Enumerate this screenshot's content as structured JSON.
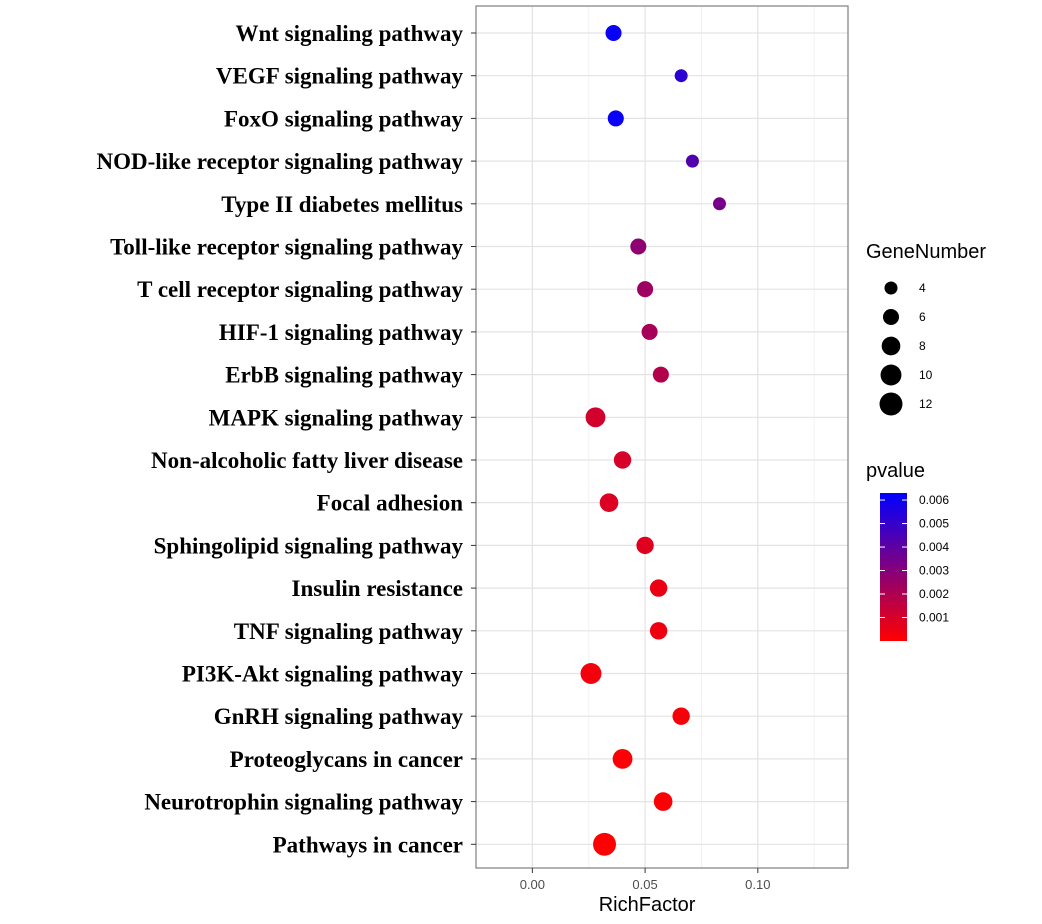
{
  "chart_data": {
    "type": "scatter",
    "title": "",
    "xlabel": "RichFactor",
    "ylabel": "",
    "xlim": [
      -0.025,
      0.14
    ],
    "xticks": [
      0.0,
      0.05,
      0.1
    ],
    "xtick_labels": [
      "0.00",
      "0.05",
      "0.10"
    ],
    "grid": true,
    "categories": [
      "Wnt signaling pathway",
      "VEGF signaling pathway",
      "FoxO signaling pathway",
      "NOD-like receptor signaling pathway",
      "Type II diabetes mellitus",
      "Toll-like receptor signaling pathway",
      "T cell receptor signaling pathway",
      "HIF-1 signaling pathway",
      "ErbB signaling pathway",
      "MAPK signaling pathway",
      "Non-alcoholic fatty liver disease",
      "Focal adhesion",
      "Sphingolipid signaling pathway",
      "Insulin resistance",
      "TNF signaling pathway",
      "PI3K-Akt signaling pathway",
      "GnRH signaling pathway",
      "Proteoglycans in cancer",
      "Neurotrophin signaling pathway",
      "Pathways in cancer"
    ],
    "rich_factor": [
      0.036,
      0.066,
      0.037,
      0.071,
      0.083,
      0.047,
      0.05,
      0.052,
      0.057,
      0.028,
      0.04,
      0.034,
      0.05,
      0.056,
      0.056,
      0.026,
      0.066,
      0.04,
      0.058,
      0.032
    ],
    "gene_number": [
      6,
      4,
      6,
      4,
      4,
      6,
      6,
      6,
      6,
      9,
      7,
      8,
      7,
      7,
      7,
      10,
      7,
      9,
      8,
      12
    ],
    "pvalue": [
      0.0061,
      0.0052,
      0.0061,
      0.0043,
      0.0034,
      0.0028,
      0.0024,
      0.0022,
      0.0019,
      0.0011,
      0.001,
      0.0009,
      0.0008,
      0.0005,
      0.0004,
      0.0003,
      0.0002,
      0.0001,
      0.0001,
      0.0
    ],
    "legend": {
      "size_title": "GeneNumber",
      "size_values": [
        4,
        6,
        8,
        10,
        12
      ],
      "size_labels": [
        "4",
        "6",
        "8",
        "10",
        "12"
      ],
      "color_title": "pvalue",
      "color_ticks": [
        0.006,
        0.005,
        0.004,
        0.003,
        0.002,
        0.001
      ],
      "color_tick_labels": [
        "0.006",
        "0.005",
        "0.004",
        "0.003",
        "0.002",
        "0.001"
      ],
      "color_range": [
        0.0,
        0.0063
      ],
      "color_low": "#ff0000",
      "color_high": "#0000ff",
      "placement": "right"
    },
    "colors": {
      "panel_border": "#7f7f7f",
      "grid_major": "#e3e3e3",
      "grid_minor": "#f2f2f2",
      "size_legend_dot": "#000000"
    }
  }
}
